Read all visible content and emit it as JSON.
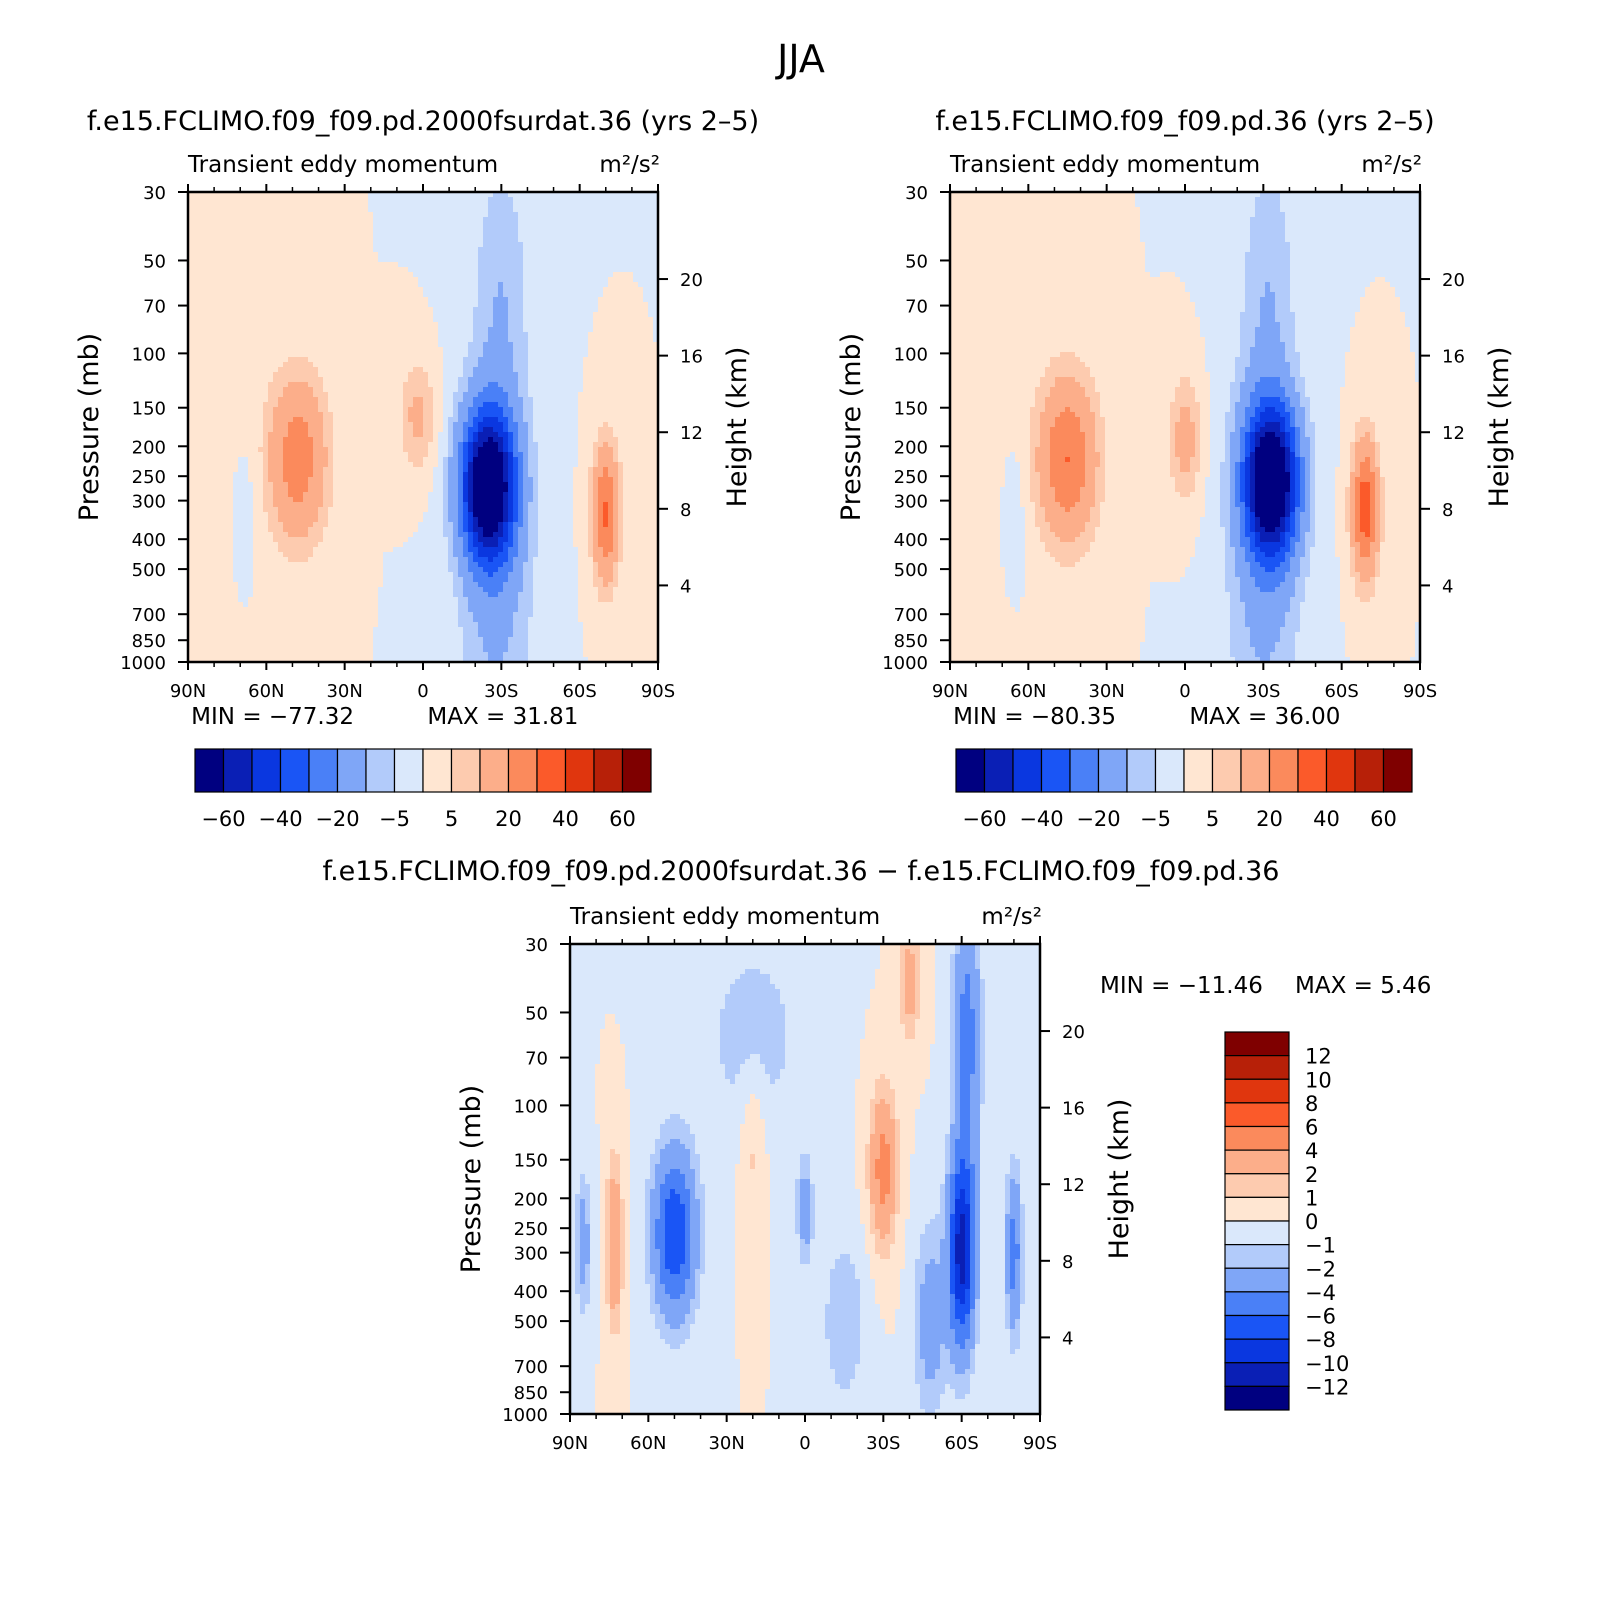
{
  "figure_title": "JJA",
  "colors": {
    "main_scale": [
      "#000080",
      "#0a1fb5",
      "#0a37e0",
      "#1a55f5",
      "#4a80f7",
      "#7fa6f7",
      "#b2cbfa",
      "#dae8fb",
      "#ffe6d2",
      "#fdcbaf",
      "#fcae8a",
      "#fb8a5c",
      "#fb5a2a",
      "#e0360e",
      "#b72008",
      "#7f0000"
    ],
    "diff_scale": [
      "#000080",
      "#0a1fb5",
      "#0a37e0",
      "#1a55f5",
      "#4a80f7",
      "#7fa6f7",
      "#b2cbfa",
      "#dae8fb",
      "#ffe6d2",
      "#fdcbaf",
      "#fcae8a",
      "#fb8a5c",
      "#fb5a2a",
      "#e0360e",
      "#b72008",
      "#7f0000"
    ]
  },
  "chart_data": [
    {
      "type": "heatmap",
      "case_title": "f.e15.FCLIMO.f09_f09.pd.2000fsurdat.36 (yrs 2–5)",
      "var_title": "Transient eddy momentum",
      "units": "m²/s²",
      "xlabel": "",
      "ylabel": "Pressure (mb)",
      "ylabel_right": "Height (km)",
      "x_ticks": [
        "90N",
        "60N",
        "30N",
        "0",
        "30S",
        "60S",
        "90S"
      ],
      "y_ticks": [
        "30",
        "50",
        "70",
        "100",
        "150",
        "200",
        "250",
        "300",
        "400",
        "500",
        "700",
        "850",
        "1000"
      ],
      "y_right_ticks": [
        "20",
        "16",
        "12",
        "8",
        "4"
      ],
      "min_label": "MIN = −77.32",
      "max_label": "MAX =  31.81",
      "min": -77.32,
      "max": 31.81,
      "colorbar_labels": [
        "−60",
        "−40",
        "−20",
        "−5",
        "5",
        "20",
        "40",
        "60"
      ],
      "features": [
        {
          "lat": -25,
          "p": 270,
          "value": -77,
          "lat_width": 10,
          "p_span": 0.55
        },
        {
          "lat": -28,
          "p": 500,
          "value": -12,
          "lat_width": 14,
          "p_span": 1.6
        },
        {
          "lat": -30,
          "p": 60,
          "value": -8,
          "lat_width": 10,
          "p_span": 1.0
        },
        {
          "lat": 48,
          "p": 220,
          "value": 26,
          "lat_width": 11,
          "p_span": 0.6
        },
        {
          "lat": 2,
          "p": 160,
          "value": 12,
          "lat_width": 7,
          "p_span": 0.4
        },
        {
          "lat": -70,
          "p": 330,
          "value": 31,
          "lat_width": 5,
          "p_span": 0.5
        },
        {
          "lat": 68,
          "p": 300,
          "value": -3,
          "lat_width": 5,
          "p_span": 0.5
        },
        {
          "lat": 75,
          "p": 80,
          "value": 2,
          "lat_width": 15,
          "p_span": 1.5
        }
      ]
    },
    {
      "type": "heatmap",
      "case_title": "f.e15.FCLIMO.f09_f09.pd.36 (yrs 2–5)",
      "var_title": "Transient eddy momentum",
      "units": "m²/s²",
      "xlabel": "",
      "ylabel": "Pressure (mb)",
      "ylabel_right": "Height (km)",
      "x_ticks": [
        "90N",
        "60N",
        "30N",
        "0",
        "30S",
        "60S",
        "90S"
      ],
      "y_ticks": [
        "30",
        "50",
        "70",
        "100",
        "150",
        "200",
        "250",
        "300",
        "400",
        "500",
        "700",
        "850",
        "1000"
      ],
      "y_right_ticks": [
        "20",
        "16",
        "12",
        "8",
        "4"
      ],
      "min_label": "MIN = −80.35",
      "max_label": "MAX =  36.00",
      "min": -80.35,
      "max": 36.0,
      "colorbar_labels": [
        "−60",
        "−40",
        "−20",
        "−5",
        "5",
        "20",
        "40",
        "60"
      ],
      "features": [
        {
          "lat": -33,
          "p": 260,
          "value": -80,
          "lat_width": 10,
          "p_span": 0.55
        },
        {
          "lat": -30,
          "p": 500,
          "value": -12,
          "lat_width": 14,
          "p_span": 1.6
        },
        {
          "lat": -32,
          "p": 60,
          "value": -8,
          "lat_width": 10,
          "p_span": 1.0
        },
        {
          "lat": 45,
          "p": 220,
          "value": 30,
          "lat_width": 11,
          "p_span": 0.6
        },
        {
          "lat": 0,
          "p": 190,
          "value": 14,
          "lat_width": 6,
          "p_span": 0.45
        },
        {
          "lat": -69,
          "p": 320,
          "value": 36,
          "lat_width": 5,
          "p_span": 0.5
        },
        {
          "lat": 65,
          "p": 300,
          "value": -3,
          "lat_width": 5,
          "p_span": 0.5
        },
        {
          "lat": 75,
          "p": 80,
          "value": 2,
          "lat_width": 15,
          "p_span": 1.5
        }
      ]
    },
    {
      "type": "heatmap",
      "case_title": "f.e15.FCLIMO.f09_f09.pd.2000fsurdat.36 − f.e15.FCLIMO.f09_f09.pd.36",
      "var_title": "Transient eddy momentum",
      "units": "m²/s²",
      "xlabel": "",
      "ylabel": "Pressure (mb)",
      "ylabel_right": "Height (km)",
      "x_ticks": [
        "90N",
        "60N",
        "30N",
        "0",
        "30S",
        "60S",
        "90S"
      ],
      "y_ticks": [
        "30",
        "50",
        "70",
        "100",
        "150",
        "200",
        "250",
        "300",
        "400",
        "500",
        "700",
        "850",
        "1000"
      ],
      "y_right_ticks": [
        "20",
        "16",
        "12",
        "8",
        "4"
      ],
      "min_label": "MIN = −11.46",
      "max_label": "MAX =  5.46",
      "min": -11.46,
      "max": 5.46,
      "colorbar_labels": [
        "12",
        "10",
        "8",
        "6",
        "4",
        "2",
        "1",
        "0",
        "−1",
        "−2",
        "−4",
        "−6",
        "−8",
        "−10",
        "−12"
      ],
      "features": [
        {
          "lat": 50,
          "p": 260,
          "value": -8,
          "lat_width": 8,
          "p_span": 0.6
        },
        {
          "lat": -60,
          "p": 300,
          "value": -11,
          "lat_width": 5,
          "p_span": 0.7
        },
        {
          "lat": -62,
          "p": 60,
          "value": -5,
          "lat_width": 5,
          "p_span": 1.0
        },
        {
          "lat": -80,
          "p": 300,
          "value": -5,
          "lat_width": 3,
          "p_span": 0.6
        },
        {
          "lat": -30,
          "p": 160,
          "value": 5,
          "lat_width": 5,
          "p_span": 0.55
        },
        {
          "lat": -40,
          "p": 40,
          "value": 3,
          "lat_width": 4,
          "p_span": 0.4
        },
        {
          "lat": 73,
          "p": 280,
          "value": 4,
          "lat_width": 3,
          "p_span": 0.6
        },
        {
          "lat": 85,
          "p": 280,
          "value": -3,
          "lat_width": 3,
          "p_span": 0.5
        },
        {
          "lat": 0,
          "p": 220,
          "value": -3,
          "lat_width": 3,
          "p_span": 0.4
        },
        {
          "lat": 20,
          "p": 130,
          "value": 1.5,
          "lat_width": 5,
          "p_span": 0.6
        },
        {
          "lat": -15,
          "p": 500,
          "value": -2,
          "lat_width": 8,
          "p_span": 0.6
        },
        {
          "lat": -48,
          "p": 500,
          "value": -3,
          "lat_width": 6,
          "p_span": 0.7
        },
        {
          "lat": 20,
          "p": 60,
          "value": -1.5,
          "lat_width": 20,
          "p_span": 0.8
        }
      ]
    }
  ]
}
